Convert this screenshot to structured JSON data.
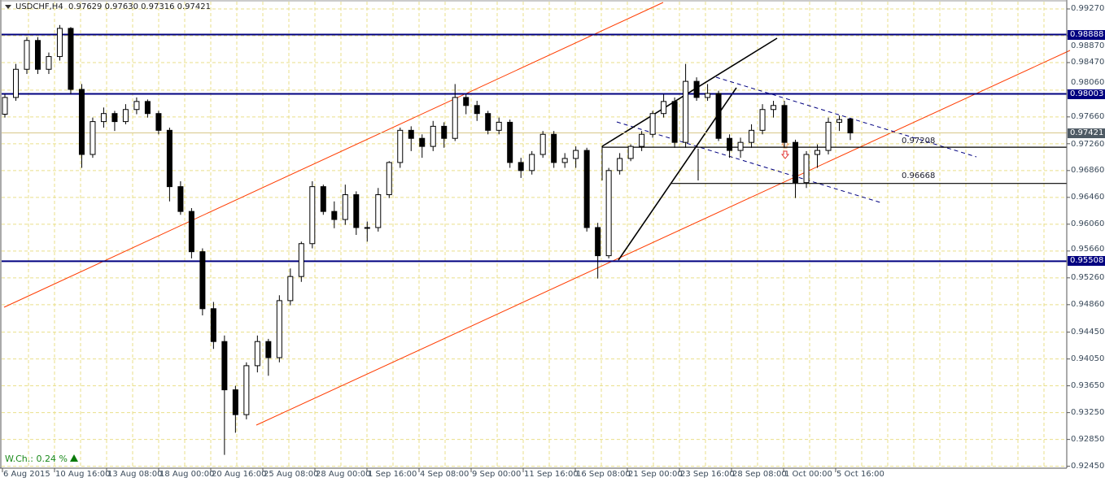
{
  "header": {
    "symbol_timeframe": "USDCHF,H4",
    "ohlc": "0.97629 0.97630 0.97316 0.97421"
  },
  "weekly_change": {
    "label": "W.Ch.: 0.24 %",
    "direction": "up"
  },
  "colors": {
    "level": "#000080",
    "channel": "#ff3c00",
    "grid": "#e9df8a",
    "trend_dashed": "#000080",
    "current_price_tag": "#4e5a64",
    "bull_body": "#ffffff",
    "bear_body": "#000000"
  },
  "chart_data": {
    "type": "candlestick",
    "title": "USDCHF,H4",
    "ylim": [
      0.9245,
      0.9935
    ],
    "y_ticks": [
      "0.99270",
      "0.98870",
      "0.98470",
      "0.98060",
      "0.97660",
      "0.97260",
      "0.96860",
      "0.96460",
      "0.96060",
      "0.95660",
      "0.95260",
      "0.94860",
      "0.94450",
      "0.94050",
      "0.93650",
      "0.93250",
      "0.92850",
      "0.92450"
    ],
    "x_ticks": [
      "6 Aug 2015",
      "10 Aug 16:00",
      "13 Aug 08:00",
      "18 Aug 00:00",
      "20 Aug 16:00",
      "25 Aug 08:00",
      "28 Aug 00:00",
      "1 Sep 16:00",
      "4 Sep 08:00",
      "9 Sep 00:00",
      "11 Sep 16:00",
      "16 Sep 08:00",
      "21 Sep 00:00",
      "23 Sep 16:00",
      "28 Sep 08:00",
      "1 Oct 00:00",
      "5 Oct 16:00"
    ],
    "levels": [
      {
        "price": "0.98888",
        "style": "support-resistance"
      },
      {
        "price": "0.98003",
        "style": "support-resistance"
      },
      {
        "price": "0.95508",
        "style": "support-resistance"
      }
    ],
    "annotated_levels": [
      "0.97208",
      "0.96668"
    ],
    "current_price": "0.97421",
    "candles": [
      [
        0.977,
        0.98,
        0.9765,
        0.9795
      ],
      [
        0.9795,
        0.9845,
        0.979,
        0.9837
      ],
      [
        0.9837,
        0.9885,
        0.983,
        0.988
      ],
      [
        0.988,
        0.9885,
        0.983,
        0.9837
      ],
      [
        0.9837,
        0.9862,
        0.983,
        0.9856
      ],
      [
        0.9856,
        0.9903,
        0.985,
        0.9898
      ],
      [
        0.9898,
        0.99,
        0.98,
        0.9807
      ],
      [
        0.9807,
        0.9815,
        0.969,
        0.971
      ],
      [
        0.971,
        0.9765,
        0.9705,
        0.9759
      ],
      [
        0.9759,
        0.978,
        0.975,
        0.9771
      ],
      [
        0.9771,
        0.9775,
        0.9745,
        0.9759
      ],
      [
        0.9759,
        0.9785,
        0.9755,
        0.9777
      ],
      [
        0.9777,
        0.9795,
        0.977,
        0.9789
      ],
      [
        0.9789,
        0.9792,
        0.9765,
        0.9771
      ],
      [
        0.9771,
        0.9775,
        0.974,
        0.9746
      ],
      [
        0.9746,
        0.975,
        0.964,
        0.9662
      ],
      [
        0.9662,
        0.967,
        0.962,
        0.9625
      ],
      [
        0.9625,
        0.963,
        0.9555,
        0.9565
      ],
      [
        0.9565,
        0.957,
        0.947,
        0.948
      ],
      [
        0.948,
        0.949,
        0.942,
        0.9431
      ],
      [
        0.9431,
        0.944,
        0.9262,
        0.9359
      ],
      [
        0.9359,
        0.9365,
        0.9295,
        0.9322
      ],
      [
        0.9322,
        0.94,
        0.9315,
        0.9395
      ],
      [
        0.9395,
        0.944,
        0.9385,
        0.9431
      ],
      [
        0.9431,
        0.9435,
        0.938,
        0.9407
      ],
      [
        0.9407,
        0.95,
        0.94,
        0.9492
      ],
      [
        0.9492,
        0.954,
        0.9485,
        0.9528
      ],
      [
        0.9528,
        0.958,
        0.952,
        0.9577
      ],
      [
        0.9577,
        0.967,
        0.957,
        0.9662
      ],
      [
        0.9662,
        0.9665,
        0.962,
        0.9625
      ],
      [
        0.9625,
        0.964,
        0.96,
        0.9613
      ],
      [
        0.9613,
        0.9665,
        0.9605,
        0.965
      ],
      [
        0.965,
        0.9655,
        0.959,
        0.9601
      ],
      [
        0.9601,
        0.961,
        0.958,
        0.9601
      ],
      [
        0.9601,
        0.966,
        0.9595,
        0.965
      ],
      [
        0.965,
        0.97,
        0.9645,
        0.9698
      ],
      [
        0.9698,
        0.975,
        0.969,
        0.9746
      ],
      [
        0.9746,
        0.9752,
        0.9715,
        0.9734
      ],
      [
        0.9734,
        0.974,
        0.9705,
        0.9722
      ],
      [
        0.9722,
        0.976,
        0.9715,
        0.9752
      ],
      [
        0.9752,
        0.9758,
        0.972,
        0.9734
      ],
      [
        0.9734,
        0.9815,
        0.973,
        0.9795
      ],
      [
        0.9795,
        0.98,
        0.977,
        0.9783
      ],
      [
        0.9783,
        0.979,
        0.976,
        0.9771
      ],
      [
        0.9771,
        0.9775,
        0.974,
        0.9746
      ],
      [
        0.9746,
        0.9765,
        0.974,
        0.9758
      ],
      [
        0.9758,
        0.9762,
        0.969,
        0.9698
      ],
      [
        0.9698,
        0.9705,
        0.9675,
        0.9686
      ],
      [
        0.9686,
        0.9715,
        0.968,
        0.971
      ],
      [
        0.971,
        0.9745,
        0.9705,
        0.974
      ],
      [
        0.974,
        0.9745,
        0.969,
        0.9698
      ],
      [
        0.9698,
        0.9712,
        0.969,
        0.9704
      ],
      [
        0.9704,
        0.9722,
        0.969,
        0.9716
      ],
      [
        0.9716,
        0.972,
        0.9595,
        0.9601
      ],
      [
        0.9601,
        0.9608,
        0.9525,
        0.9559
      ],
      [
        0.9559,
        0.969,
        0.9555,
        0.9686
      ],
      [
        0.9686,
        0.9712,
        0.968,
        0.9704
      ],
      [
        0.9704,
        0.9725,
        0.97,
        0.9722
      ],
      [
        0.9722,
        0.9745,
        0.9715,
        0.974
      ],
      [
        0.974,
        0.9775,
        0.9735,
        0.9771
      ],
      [
        0.9771,
        0.98,
        0.9765,
        0.9789
      ],
      [
        0.9789,
        0.9795,
        0.972,
        0.9728
      ],
      [
        0.9728,
        0.9845,
        0.972,
        0.9819
      ],
      [
        0.9819,
        0.9825,
        0.979,
        0.9795
      ],
      [
        0.9795,
        0.9815,
        0.979,
        0.9801
      ],
      [
        0.9801,
        0.9805,
        0.973,
        0.9734
      ],
      [
        0.9734,
        0.974,
        0.9705,
        0.9716
      ],
      [
        0.9716,
        0.9735,
        0.9705,
        0.9728
      ],
      [
        0.9728,
        0.9755,
        0.972,
        0.9746
      ],
      [
        0.9746,
        0.9785,
        0.974,
        0.9777
      ],
      [
        0.9777,
        0.979,
        0.9765,
        0.9783
      ],
      [
        0.9783,
        0.979,
        0.972,
        0.9728
      ],
      [
        0.9728,
        0.9732,
        0.9645,
        0.9668
      ],
      [
        0.9668,
        0.9715,
        0.966,
        0.971
      ],
      [
        0.971,
        0.9725,
        0.969,
        0.9716
      ],
      [
        0.9716,
        0.9765,
        0.971,
        0.9758
      ],
      [
        0.9758,
        0.9768,
        0.9745,
        0.9762
      ],
      [
        0.97629,
        0.9763,
        0.97316,
        0.97421
      ]
    ],
    "grid": true
  }
}
